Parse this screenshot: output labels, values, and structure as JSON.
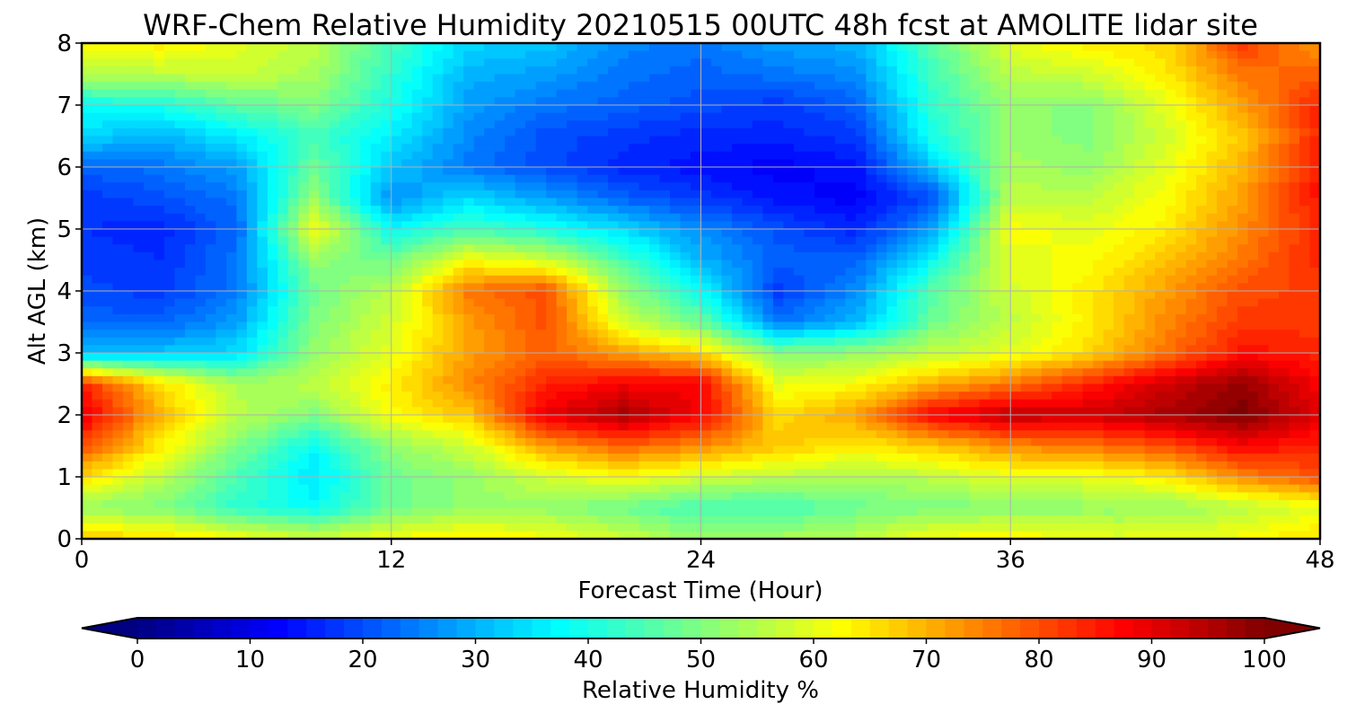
{
  "chart_data": {
    "type": "heatmap",
    "title": "WRF-Chem Relative Humidity 20210515 00UTC 48h fcst at AMOLITE lidar site",
    "xlabel": "Forecast Time (Hour)",
    "ylabel": "Alt AGL (km)",
    "xlim": [
      0,
      48
    ],
    "ylim": [
      0,
      8
    ],
    "xticks": [
      "0",
      "12",
      "24",
      "36",
      "48"
    ],
    "yticks": [
      "0",
      "1",
      "2",
      "3",
      "4",
      "5",
      "6",
      "7",
      "8"
    ],
    "grid": true,
    "colorbar": {
      "label": "Relative Humidity %",
      "min": 0,
      "max": 100,
      "ticks": [
        "0",
        "10",
        "20",
        "30",
        "40",
        "50",
        "60",
        "70",
        "80",
        "90",
        "100"
      ],
      "colormap": "jet",
      "extend": "both"
    },
    "x": [
      0,
      3,
      6,
      9,
      12,
      15,
      18,
      21,
      24,
      27,
      30,
      33,
      36,
      39,
      42,
      45,
      48
    ],
    "y": [
      0,
      0.5,
      1,
      1.5,
      2,
      2.5,
      3,
      3.5,
      4,
      4.5,
      5,
      5.5,
      6,
      6.5,
      7,
      7.5,
      8
    ],
    "z": [
      [
        68,
        66,
        62,
        58,
        62,
        64,
        62,
        58,
        52,
        54,
        56,
        62,
        64,
        60,
        60,
        62,
        66
      ],
      [
        52,
        50,
        42,
        38,
        48,
        52,
        52,
        48,
        44,
        44,
        48,
        50,
        50,
        52,
        52,
        56,
        60
      ],
      [
        66,
        56,
        45,
        35,
        48,
        52,
        58,
        62,
        58,
        56,
        54,
        56,
        60,
        60,
        64,
        74,
        80
      ],
      [
        80,
        64,
        50,
        38,
        52,
        58,
        72,
        78,
        74,
        68,
        64,
        68,
        74,
        76,
        80,
        88,
        84
      ],
      [
        90,
        70,
        56,
        50,
        62,
        68,
        90,
        96,
        88,
        66,
        72,
        88,
        94,
        92,
        96,
        100,
        90
      ],
      [
        84,
        66,
        54,
        56,
        64,
        74,
        84,
        88,
        88,
        60,
        62,
        70,
        76,
        84,
        92,
        98,
        88
      ],
      [
        30,
        32,
        34,
        52,
        60,
        72,
        78,
        72,
        66,
        50,
        52,
        56,
        60,
        66,
        76,
        86,
        84
      ],
      [
        22,
        22,
        28,
        50,
        58,
        72,
        80,
        58,
        48,
        24,
        30,
        48,
        56,
        64,
        74,
        82,
        82
      ],
      [
        20,
        18,
        24,
        48,
        56,
        76,
        80,
        52,
        38,
        18,
        26,
        46,
        58,
        64,
        72,
        80,
        82
      ],
      [
        18,
        17,
        24,
        52,
        48,
        62,
        58,
        44,
        30,
        22,
        22,
        38,
        60,
        62,
        68,
        76,
        84
      ],
      [
        17,
        16,
        22,
        62,
        38,
        44,
        40,
        34,
        26,
        20,
        16,
        28,
        62,
        60,
        64,
        74,
        84
      ],
      [
        18,
        20,
        24,
        52,
        26,
        34,
        28,
        22,
        18,
        14,
        12,
        20,
        56,
        56,
        62,
        72,
        86
      ],
      [
        22,
        24,
        28,
        48,
        32,
        24,
        20,
        16,
        14,
        12,
        14,
        32,
        54,
        52,
        60,
        70,
        86
      ],
      [
        34,
        30,
        36,
        44,
        36,
        26,
        20,
        18,
        16,
        16,
        18,
        40,
        52,
        50,
        58,
        68,
        84
      ],
      [
        38,
        40,
        46,
        50,
        40,
        28,
        24,
        22,
        20,
        18,
        22,
        42,
        52,
        50,
        60,
        72,
        84
      ],
      [
        56,
        56,
        58,
        54,
        42,
        30,
        28,
        24,
        22,
        24,
        26,
        44,
        56,
        58,
        64,
        76,
        78
      ],
      [
        62,
        64,
        60,
        56,
        44,
        34,
        32,
        26,
        24,
        28,
        30,
        46,
        60,
        64,
        66,
        82,
        72
      ]
    ]
  }
}
